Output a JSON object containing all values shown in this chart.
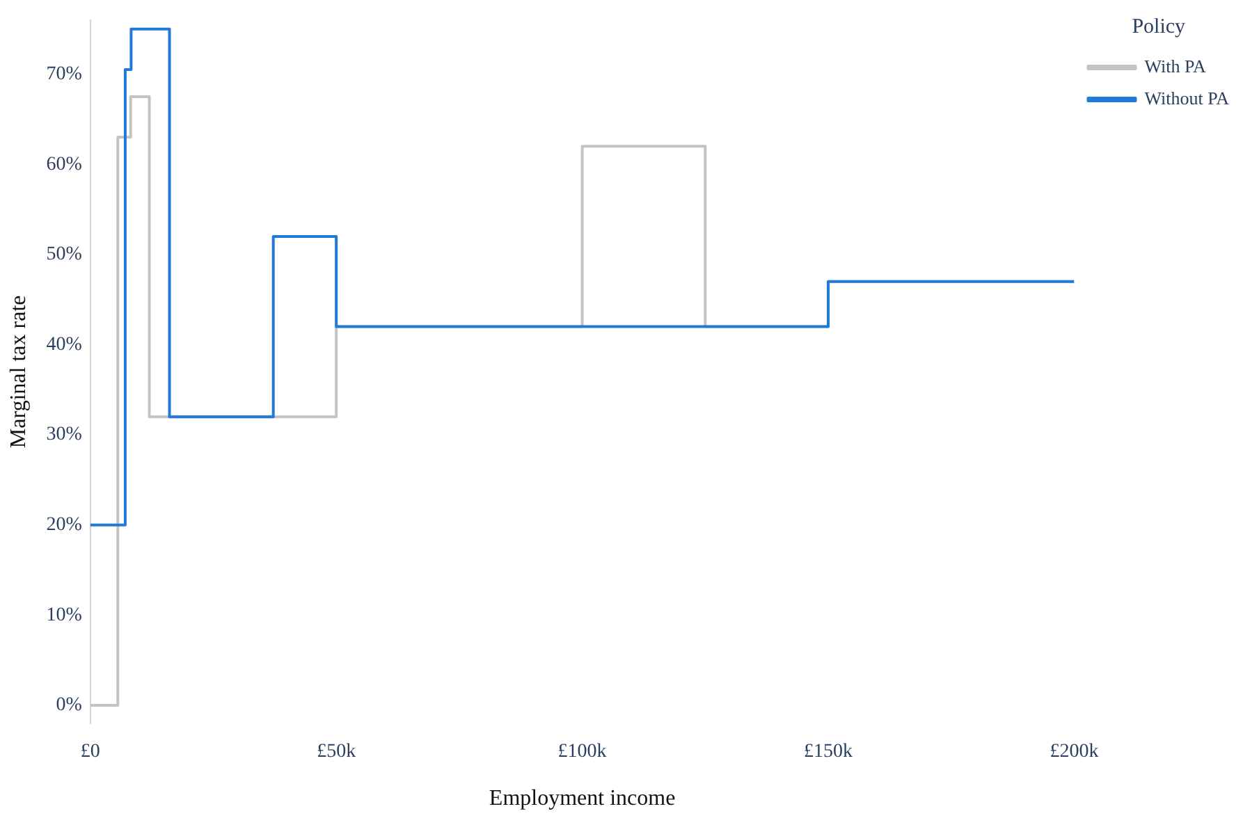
{
  "chart_data": {
    "type": "step",
    "xlabel": "Employment income",
    "ylabel": "Marginal tax rate",
    "legend_title": "Policy",
    "legend": "top right",
    "grid": false,
    "marker": "none",
    "line_style": "solid",
    "xlim": [
      0,
      200000
    ],
    "xticks": [
      {
        "value": 0,
        "label": "£0"
      },
      {
        "value": 50000,
        "label": "£50k"
      },
      {
        "value": 100000,
        "label": "£100k"
      },
      {
        "value": 150000,
        "label": "£150k"
      },
      {
        "value": 200000,
        "label": "£200k"
      }
    ],
    "ylim": [
      -2,
      76
    ],
    "yticks": [
      {
        "value": 0,
        "label": "0%"
      },
      {
        "value": 10,
        "label": "10%"
      },
      {
        "value": 20,
        "label": "20%"
      },
      {
        "value": 30,
        "label": "30%"
      },
      {
        "value": 40,
        "label": "40%"
      },
      {
        "value": 50,
        "label": "50%"
      },
      {
        "value": 60,
        "label": "60%"
      },
      {
        "value": 70,
        "label": "70%"
      }
    ],
    "series": [
      {
        "name": "With PA",
        "color": "#c3c3c3",
        "x": [
          0,
          5600,
          8200,
          12000,
          50000,
          100000,
          125000,
          150000,
          200000
        ],
        "values": [
          0,
          63,
          67.5,
          32,
          42,
          62,
          42,
          47,
          47
        ]
      },
      {
        "name": "Without PA",
        "color": "#1f7ad9",
        "x": [
          0,
          7100,
          8300,
          16100,
          37200,
          50000,
          150000,
          200000
        ],
        "values": [
          20,
          70.5,
          75,
          32,
          52,
          42,
          47,
          47
        ]
      }
    ]
  }
}
